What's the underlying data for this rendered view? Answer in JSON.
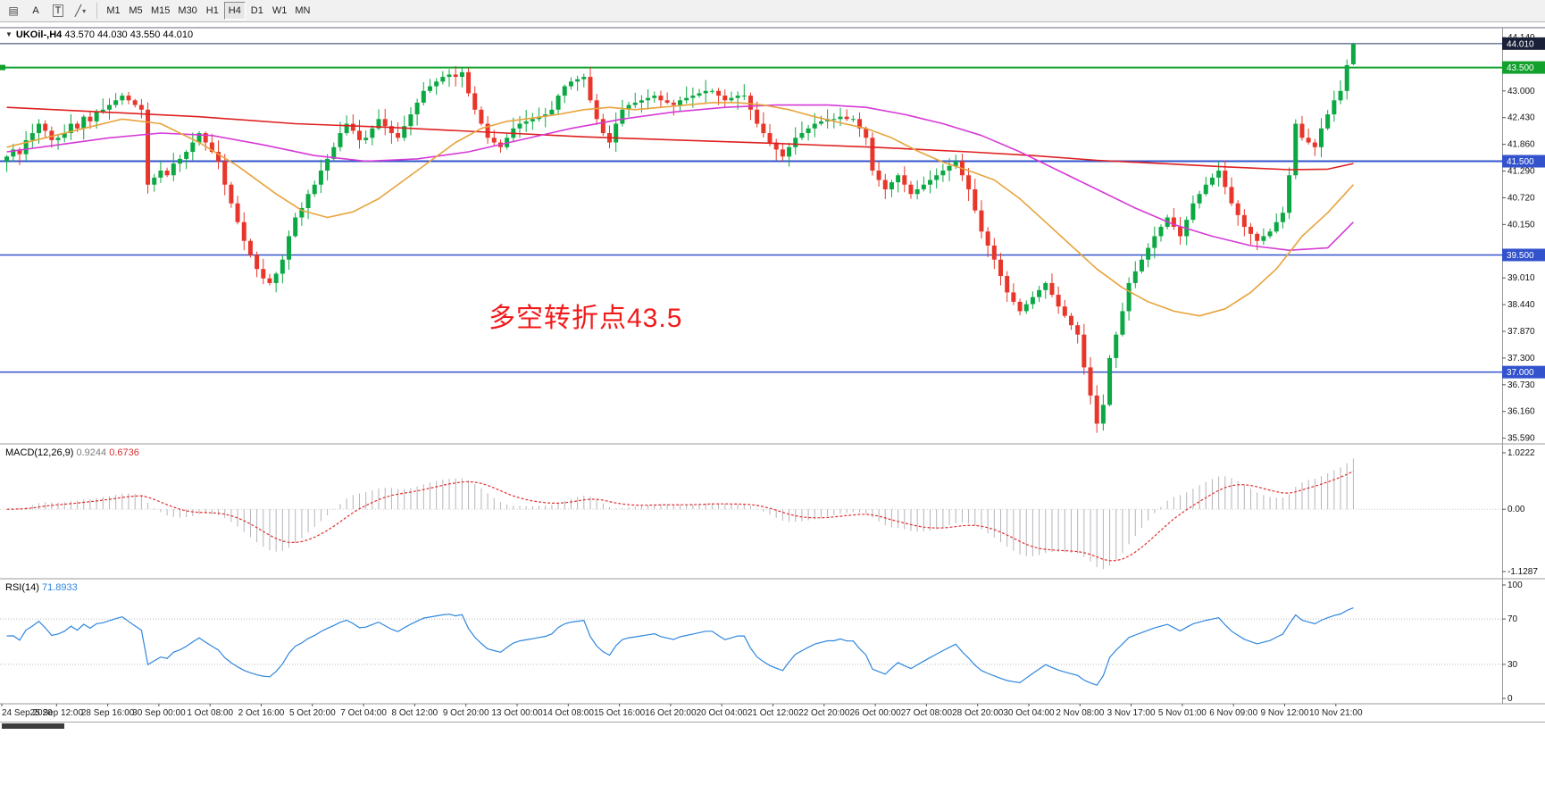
{
  "toolbar": {
    "icons": [
      {
        "name": "chart-list-icon",
        "glyph": "▤"
      },
      {
        "name": "label-a-icon",
        "glyph": "A"
      },
      {
        "name": "text-tool-icon",
        "glyph": "T"
      },
      {
        "name": "line-tool-icon",
        "glyph": "╱"
      },
      {
        "name": "dropdown-caret-icon",
        "glyph": "▾"
      }
    ],
    "timeframes": [
      "M1",
      "M5",
      "M15",
      "M30",
      "H1",
      "H4",
      "D1",
      "W1",
      "MN"
    ],
    "active_timeframe": "H4"
  },
  "chart": {
    "collapse_icon": "▼",
    "title": "UKOil-,H4",
    "ohlc_text": "43.570 44.030 43.550 44.010"
  },
  "chart_data": {
    "type": "candlestick",
    "symbol": "UKOil-",
    "timeframe": "H4",
    "quote": {
      "open": 43.57,
      "high": 44.03,
      "low": 43.55,
      "close": 44.01
    },
    "colors": {
      "up": "#0ba843",
      "down": "#e8362a",
      "ma_slow": "#df2020",
      "ma_mid": "#d63ad6",
      "ma_fast": "#e8a33d",
      "macd_hist": "#b4b4bc",
      "macd_signal": "#df3030",
      "rsi": "#2e86de",
      "annotation": "#f21a1a",
      "price_line": "#24355e"
    },
    "closes": [
      41.6,
      41.75,
      41.65,
      41.95,
      42.1,
      42.3,
      42.15,
      41.95,
      42.0,
      42.1,
      42.3,
      42.2,
      42.45,
      42.35,
      42.55,
      42.6,
      42.7,
      42.8,
      42.9,
      42.8,
      42.7,
      42.6,
      41.0,
      41.15,
      41.3,
      41.2,
      41.45,
      41.55,
      41.7,
      41.9,
      42.1,
      41.9,
      41.7,
      41.5,
      41.0,
      40.6,
      40.2,
      39.8,
      39.5,
      39.2,
      39.0,
      38.9,
      39.1,
      39.4,
      39.9,
      40.3,
      40.5,
      40.8,
      41.0,
      41.3,
      41.55,
      41.8,
      42.1,
      42.3,
      42.15,
      41.95,
      42.0,
      42.2,
      42.4,
      42.25,
      42.1,
      42.0,
      42.25,
      42.5,
      42.75,
      43.0,
      43.1,
      43.2,
      43.3,
      43.35,
      43.3,
      43.4,
      42.95,
      42.6,
      42.3,
      42.0,
      41.9,
      41.8,
      42.0,
      42.2,
      42.3,
      42.35,
      42.4,
      42.45,
      42.5,
      42.6,
      42.9,
      43.1,
      43.2,
      43.25,
      43.3,
      42.8,
      42.4,
      42.1,
      41.9,
      42.3,
      42.6,
      42.7,
      42.75,
      42.8,
      42.85,
      42.9,
      42.8,
      42.75,
      42.7,
      42.8,
      42.85,
      42.9,
      42.95,
      43.0,
      43.0,
      42.9,
      42.8,
      42.85,
      42.9,
      42.9,
      42.6,
      42.3,
      42.1,
      41.9,
      41.75,
      41.6,
      41.8,
      42.0,
      42.1,
      42.2,
      42.3,
      42.35,
      42.4,
      42.4,
      42.45,
      42.4,
      42.4,
      42.2,
      42.0,
      41.3,
      41.1,
      40.9,
      41.05,
      41.2,
      41.0,
      40.8,
      40.9,
      41.0,
      41.1,
      41.2,
      41.3,
      41.4,
      41.5,
      41.2,
      40.9,
      40.45,
      40.0,
      39.7,
      39.4,
      39.05,
      38.7,
      38.5,
      38.3,
      38.45,
      38.6,
      38.75,
      38.9,
      38.65,
      38.4,
      38.2,
      38.0,
      37.8,
      37.1,
      36.5,
      35.9,
      36.3,
      37.3,
      37.8,
      38.3,
      38.9,
      39.15,
      39.4,
      39.65,
      39.9,
      40.1,
      40.3,
      40.1,
      39.9,
      40.25,
      40.6,
      40.8,
      41.0,
      41.15,
      41.3,
      40.95,
      40.6,
      40.35,
      40.1,
      39.95,
      39.8,
      39.9,
      40.0,
      40.2,
      40.4,
      41.2,
      42.3,
      42.0,
      41.9,
      41.8,
      42.2,
      42.5,
      42.8,
      43.0,
      43.55,
      44.01
    ],
    "mas": [
      {
        "name": "ma-slow-red",
        "color": "#df2020",
        "points": [
          [
            0,
            42.65
          ],
          [
            15,
            42.55
          ],
          [
            30,
            42.45
          ],
          [
            45,
            42.3
          ],
          [
            60,
            42.22
          ],
          [
            75,
            42.12
          ],
          [
            90,
            42.02
          ],
          [
            105,
            41.95
          ],
          [
            120,
            41.88
          ],
          [
            135,
            41.8
          ],
          [
            150,
            41.7
          ],
          [
            160,
            41.62
          ],
          [
            170,
            41.52
          ],
          [
            180,
            41.45
          ],
          [
            190,
            41.38
          ],
          [
            200,
            41.32
          ],
          [
            206,
            41.33
          ],
          [
            210,
            41.45
          ]
        ]
      },
      {
        "name": "ma-mid-magenta",
        "color": "#d63ad6",
        "points": [
          [
            0,
            41.7
          ],
          [
            8,
            41.85
          ],
          [
            16,
            42.0
          ],
          [
            24,
            42.1
          ],
          [
            32,
            42.05
          ],
          [
            40,
            41.85
          ],
          [
            48,
            41.62
          ],
          [
            56,
            41.5
          ],
          [
            64,
            41.55
          ],
          [
            72,
            41.7
          ],
          [
            80,
            41.95
          ],
          [
            88,
            42.2
          ],
          [
            96,
            42.4
          ],
          [
            104,
            42.55
          ],
          [
            112,
            42.65
          ],
          [
            120,
            42.7
          ],
          [
            128,
            42.7
          ],
          [
            134,
            42.65
          ],
          [
            140,
            42.5
          ],
          [
            146,
            42.3
          ],
          [
            152,
            42.05
          ],
          [
            158,
            41.7
          ],
          [
            164,
            41.3
          ],
          [
            170,
            40.9
          ],
          [
            176,
            40.5
          ],
          [
            182,
            40.15
          ],
          [
            188,
            39.9
          ],
          [
            194,
            39.7
          ],
          [
            200,
            39.6
          ],
          [
            206,
            39.65
          ],
          [
            210,
            40.2
          ]
        ]
      },
      {
        "name": "ma-fast-orange",
        "color": "#e8a33d",
        "points": [
          [
            0,
            41.8
          ],
          [
            6,
            42.0
          ],
          [
            12,
            42.2
          ],
          [
            18,
            42.4
          ],
          [
            24,
            42.3
          ],
          [
            30,
            41.9
          ],
          [
            36,
            41.4
          ],
          [
            42,
            40.8
          ],
          [
            46,
            40.45
          ],
          [
            50,
            40.3
          ],
          [
            54,
            40.42
          ],
          [
            58,
            40.7
          ],
          [
            62,
            41.1
          ],
          [
            66,
            41.5
          ],
          [
            70,
            41.9
          ],
          [
            74,
            42.2
          ],
          [
            78,
            42.35
          ],
          [
            82,
            42.42
          ],
          [
            86,
            42.5
          ],
          [
            90,
            42.6
          ],
          [
            94,
            42.65
          ],
          [
            98,
            42.6
          ],
          [
            102,
            42.65
          ],
          [
            106,
            42.7
          ],
          [
            110,
            42.75
          ],
          [
            114,
            42.75
          ],
          [
            118,
            42.7
          ],
          [
            122,
            42.6
          ],
          [
            126,
            42.45
          ],
          [
            130,
            42.32
          ],
          [
            134,
            42.2
          ],
          [
            138,
            42.0
          ],
          [
            142,
            41.72
          ],
          [
            146,
            41.48
          ],
          [
            150,
            41.3
          ],
          [
            154,
            41.1
          ],
          [
            158,
            40.7
          ],
          [
            162,
            40.2
          ],
          [
            166,
            39.7
          ],
          [
            170,
            39.2
          ],
          [
            174,
            38.8
          ],
          [
            178,
            38.5
          ],
          [
            182,
            38.3
          ],
          [
            186,
            38.2
          ],
          [
            190,
            38.35
          ],
          [
            194,
            38.7
          ],
          [
            198,
            39.2
          ],
          [
            202,
            39.9
          ],
          [
            206,
            40.4
          ],
          [
            210,
            41.0
          ]
        ]
      }
    ],
    "hlines": [
      {
        "price": 43.5,
        "color": "#11a12c",
        "width": 2
      },
      {
        "price": 41.5,
        "color": "#3353cc",
        "width": 2
      },
      {
        "price": 39.5,
        "color": "#3353cc",
        "width": 1.5
      },
      {
        "price": 37.0,
        "color": "#3353cc",
        "width": 1.5
      }
    ],
    "price_line": {
      "price": 44.01,
      "color": "#24355e"
    },
    "y_axis_labels": [
      {
        "text": "44.140",
        "price": 44.14
      },
      {
        "text": "43.000",
        "price": 43.0
      },
      {
        "text": "42.430",
        "price": 42.43
      },
      {
        "text": "41.860",
        "price": 41.86
      },
      {
        "text": "41.290",
        "price": 41.29
      },
      {
        "text": "40.720",
        "price": 40.72
      },
      {
        "text": "40.150",
        "price": 40.15
      },
      {
        "text": "39.010",
        "price": 39.01
      },
      {
        "text": "38.440",
        "price": 38.44
      },
      {
        "text": "37.870",
        "price": 37.87
      },
      {
        "text": "37.300",
        "price": 37.3
      },
      {
        "text": "36.730",
        "price": 36.73
      },
      {
        "text": "36.160",
        "price": 36.16
      },
      {
        "text": "35.590",
        "price": 35.59
      }
    ],
    "price_boxes": [
      {
        "text": "44.010",
        "price": 44.01,
        "bg": "#1a2038"
      },
      {
        "text": "43.500",
        "price": 43.5,
        "bg": "#11a12c"
      },
      {
        "text": "41.500",
        "price": 41.5,
        "bg": "#3353cc"
      },
      {
        "text": "39.500",
        "price": 39.5,
        "bg": "#3353cc"
      },
      {
        "text": "37.000",
        "price": 37.0,
        "bg": "#3353cc"
      }
    ],
    "x_axis_labels": [
      "24 Sep 2020",
      "25 Sep 12:00",
      "28 Sep 16:00",
      "30 Sep 00:00",
      "1 Oct 08:00",
      "2 Oct 16:00",
      "5 Oct 20:00",
      "7 Oct 04:00",
      "8 Oct 12:00",
      "9 Oct 20:00",
      "13 Oct 00:00",
      "14 Oct 08:00",
      "15 Oct 16:00",
      "16 Oct 20:00",
      "20 Oct 04:00",
      "21 Oct 12:00",
      "22 Oct 20:00",
      "26 Oct 00:00",
      "27 Oct 08:00",
      "28 Oct 20:00",
      "30 Oct 04:00",
      "2 Nov 08:00",
      "3 Nov 17:00",
      "5 Nov 01:00",
      "6 Nov 09:00",
      "9 Nov 12:00",
      "10 Nov 21:00"
    ],
    "annotation": {
      "text": "多空转折点43.5",
      "color": "#f21a1a"
    },
    "macd": {
      "label": "MACD(12,26,9)",
      "main_value": "0.9244",
      "signal_value": "0.6736",
      "params": [
        12,
        26,
        9
      ],
      "axis": [
        {
          "text": "1.0222",
          "v": 1.0222
        },
        {
          "text": "0.00",
          "v": 0
        },
        {
          "text": "-1.1287",
          "v": -1.1287
        }
      ]
    },
    "rsi": {
      "label": "RSI(14)",
      "value": "71.8933",
      "period": 14,
      "levels": [
        70,
        30
      ],
      "axis": [
        {
          "text": "100",
          "v": 100
        },
        {
          "text": "70",
          "v": 70
        },
        {
          "text": "30",
          "v": 30
        },
        {
          "text": "0",
          "v": 0
        }
      ]
    }
  }
}
